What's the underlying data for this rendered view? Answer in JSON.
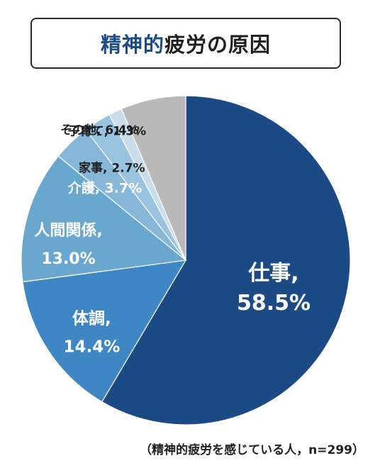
{
  "title": {
    "highlight": "精神的",
    "rest": "疲労の原因"
  },
  "footnote": "（精神的疲労を感じている人，n=299）",
  "chart_data": {
    "type": "pie",
    "title": "精神的疲労の原因",
    "slices": [
      {
        "name": "仕事",
        "value": 58.5,
        "label": "58.5%",
        "color": "#1b4a84"
      },
      {
        "name": "体調",
        "value": 14.4,
        "label": "14.4%",
        "color": "#3e87c4"
      },
      {
        "name": "人間関係",
        "value": 13.0,
        "label": "13.0%",
        "color": "#6aa7cf"
      },
      {
        "name": "介護",
        "value": 3.7,
        "label": "3.7%",
        "color": "#86b7d9"
      },
      {
        "name": "家事",
        "value": 2.7,
        "label": "2.7%",
        "color": "#9ac3df"
      },
      {
        "name": "子育て",
        "value": 1.3,
        "label": "1.3%",
        "color": "#c9dcea"
      },
      {
        "name": "その他",
        "value": 6.4,
        "label": "6.4%",
        "color": "#b9b9b9"
      }
    ]
  }
}
